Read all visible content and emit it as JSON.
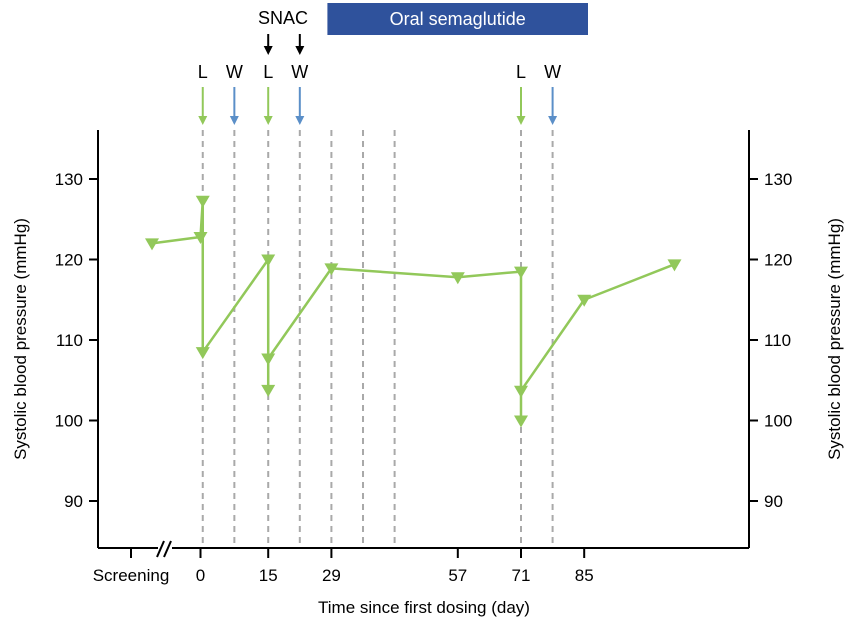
{
  "chart_data": {
    "type": "line",
    "title": "",
    "xlabel": "Time since first dosing (day)",
    "ylabel": "Systolic blood pressure (mmHg)",
    "ylabel_right": "Systolic blood pressure (mmHg)",
    "ylim": [
      84,
      136
    ],
    "yticks": [
      90,
      100,
      110,
      120,
      130
    ],
    "xlim": [
      -8,
      105
    ],
    "x_tick_labels": [
      "Screening",
      "0",
      "15",
      "29",
      "57",
      "71",
      "85"
    ],
    "x_ticks": [
      0,
      15,
      29,
      57,
      71,
      85
    ],
    "axis_break": "//",
    "grid": false,
    "series": [
      {
        "color": "#92c85a",
        "marker": "triangle-down",
        "points": [
          {
            "x": "Screening",
            "y": 122
          },
          {
            "x": 0,
            "y": 122.8
          },
          {
            "x": 0.5,
            "y": 127.3
          },
          {
            "x": 0.5,
            "y": 108.5
          },
          {
            "x": 15,
            "y": 120
          },
          {
            "x": 15,
            "y": 107.7
          },
          {
            "x": 15,
            "y": 103.8
          },
          {
            "x": 15,
            "y": 107.7
          },
          {
            "x": 29,
            "y": 118.9
          },
          {
            "x": 57,
            "y": 117.8
          },
          {
            "x": 71,
            "y": 118.5
          },
          {
            "x": 71,
            "y": 103.7
          },
          {
            "x": 71,
            "y": 100
          },
          {
            "x": 71,
            "y": 103.7
          },
          {
            "x": 85,
            "y": 115
          },
          {
            "x": 105,
            "y": 119.4
          }
        ]
      }
    ],
    "dashed_lines_x": [
      0.5,
      7.5,
      15,
      22,
      29,
      36,
      43,
      71,
      78
    ],
    "event_markers": [
      {
        "label": "L",
        "x": 0.5,
        "color": "#92c85a"
      },
      {
        "label": "W",
        "x": 7.5,
        "color": "#5b8fc8"
      },
      {
        "label": "L",
        "x": 15,
        "color": "#92c85a"
      },
      {
        "label": "W",
        "x": 22,
        "color": "#5b8fc8"
      },
      {
        "label": "L",
        "x": 71,
        "color": "#92c85a"
      },
      {
        "label": "W",
        "x": 78,
        "color": "#5b8fc8"
      }
    ],
    "snac_label": "SNAC",
    "snac_x": [
      15,
      22
    ],
    "banner": {
      "label": "Oral semaglutide",
      "x_start": 29,
      "x_end": 78,
      "color": "#2f529c"
    },
    "colors": {
      "line": "#92c85a",
      "l_arrow": "#92c85a",
      "w_arrow": "#5b8fc8",
      "dashed": "#a9a9a9",
      "banner": "#2f529c"
    }
  }
}
